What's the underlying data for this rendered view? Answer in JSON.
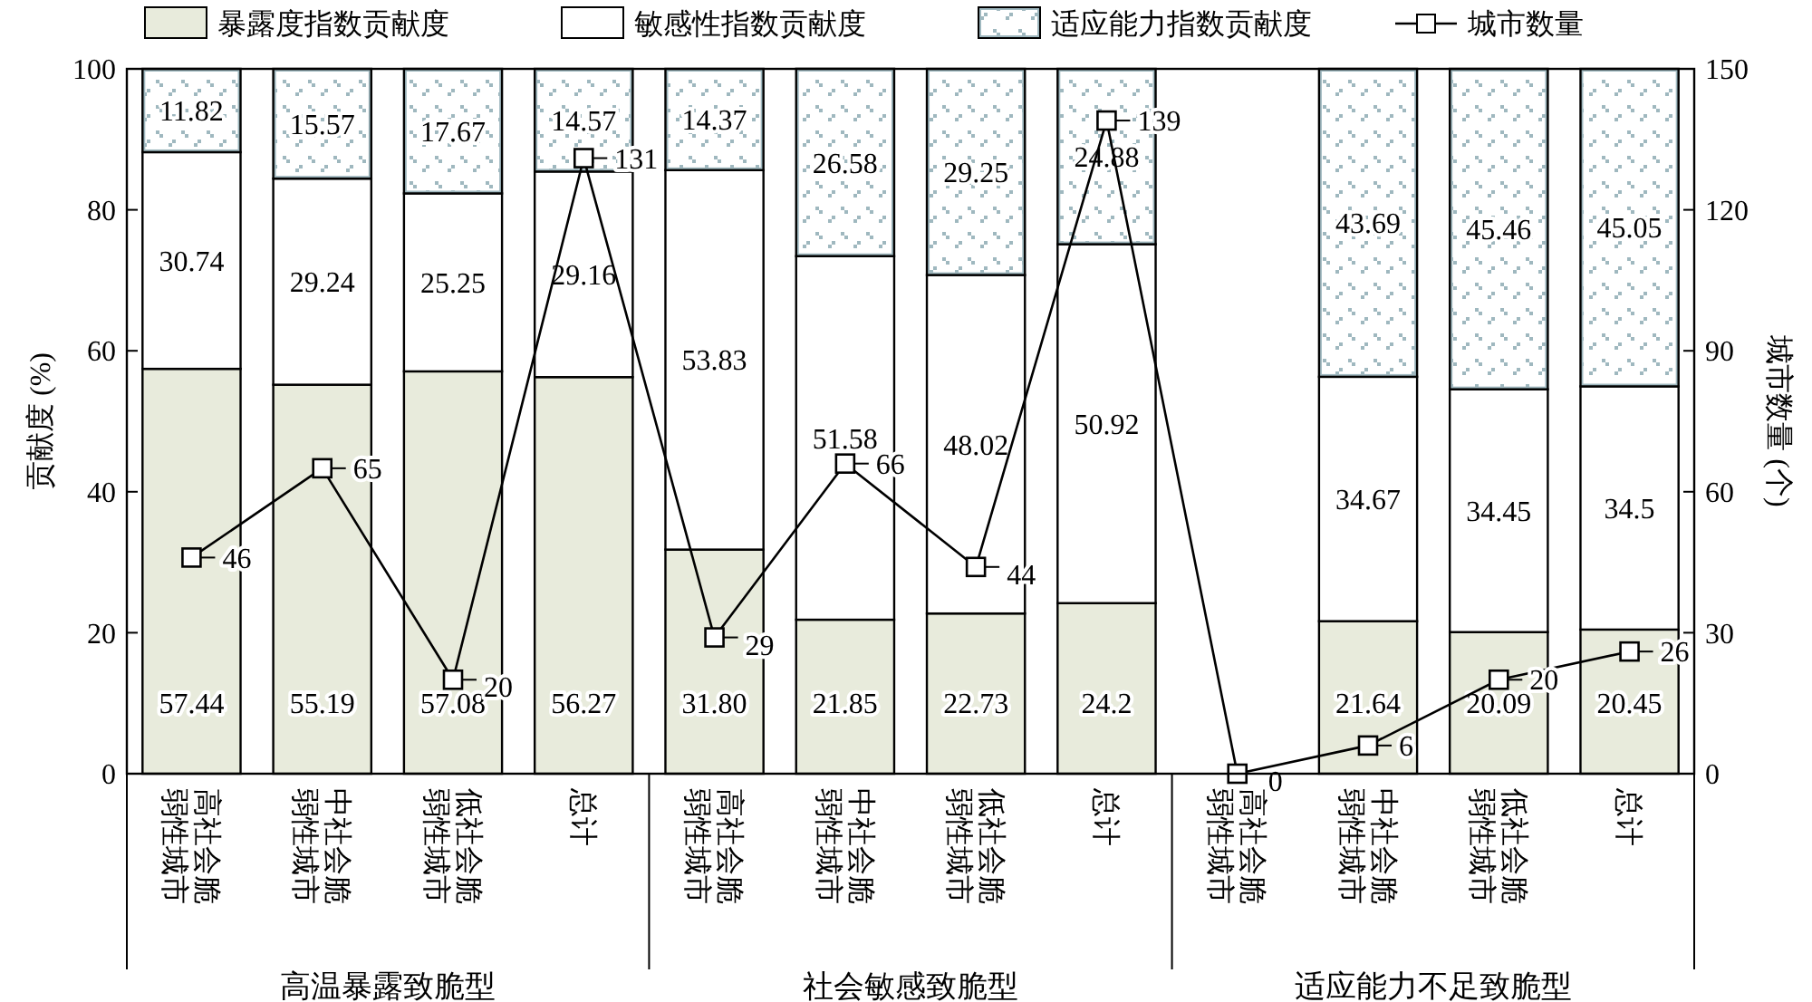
{
  "chart_data": {
    "type": "bar",
    "stacked": true,
    "ylabel": "贡献度 (%)",
    "y2label": "城市数量 (个)",
    "categories": [
      "高社会脆弱性城市",
      "中社会脆弱性城市",
      "低社会脆弱性城市",
      "总计",
      "高社会脆弱性城市",
      "中社会脆弱性城市",
      "低社会脆弱性城市",
      "总计",
      "高社会脆弱性城市",
      "中社会脆弱性城市",
      "低社会脆弱性城市",
      "总计"
    ],
    "annotations": [
      "高温暴露致脆型",
      "社会敏感致脆型",
      "适应能力不足致脆型"
    ],
    "ylim": [
      0,
      100
    ],
    "yticks": [
      0,
      20,
      40,
      60,
      80,
      100
    ],
    "y2lim": [
      0,
      150
    ],
    "y2ticks": [
      0,
      30,
      60,
      90,
      120,
      150
    ],
    "legend": "top",
    "grid": false,
    "series": [
      {
        "name": "暴露度指数贡献度",
        "color": "#e8ebdc",
        "values": [
          57.44,
          55.19,
          57.08,
          56.27,
          31.8,
          21.85,
          22.73,
          24.2,
          null,
          21.64,
          20.09,
          20.45
        ],
        "value_labels": [
          "57.44",
          "55.19",
          "57.08",
          "56.27",
          "31.80",
          "21.85",
          "22.73",
          "24.2",
          null,
          "21.64",
          "20.09",
          "20.45"
        ]
      },
      {
        "name": "敏感性指数贡献度",
        "color": "#ffffff",
        "values": [
          30.74,
          29.24,
          25.25,
          29.16,
          53.83,
          51.58,
          48.02,
          50.92,
          null,
          34.67,
          34.45,
          34.5
        ],
        "value_labels": [
          "30.74",
          "29.24",
          "25.25",
          "29.16",
          "53.83",
          "51.58",
          "48.02",
          "50.92",
          null,
          "34.67",
          "34.45",
          "34.5"
        ]
      },
      {
        "name": "适应能力指数贡献度",
        "color": "#9fb8bf",
        "values": [
          11.82,
          15.57,
          17.67,
          14.57,
          14.37,
          26.58,
          29.25,
          24.88,
          null,
          43.69,
          45.46,
          45.05
        ],
        "value_labels": [
          "11.82",
          "15.57",
          "17.67",
          "14.57",
          "14.37",
          "26.58",
          "29.25",
          "24.88",
          null,
          "43.69",
          "45.46",
          "45.05"
        ]
      },
      {
        "name": "城市数量",
        "type": "line",
        "axis": "y2",
        "color": "#000000",
        "marker": "square",
        "values": [
          46,
          65,
          20,
          131,
          29,
          66,
          44,
          139,
          0,
          6,
          20,
          26
        ],
        "value_labels": [
          "46",
          "65",
          "20",
          "131",
          "29",
          "66",
          "44",
          "139",
          "0",
          "6",
          "20",
          "26"
        ]
      }
    ]
  }
}
